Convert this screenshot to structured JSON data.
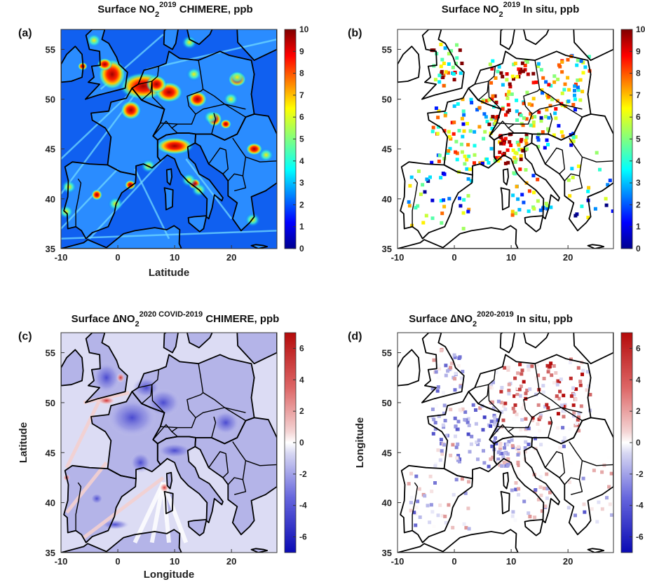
{
  "figure": {
    "panels": [
      {
        "id": "a",
        "letter": "(a)",
        "title": {
          "pre": "Surface NO",
          "sub": "2",
          "sup": "2019",
          "post": " CHIMERE, ppb"
        },
        "kind": "field",
        "palette": "jet",
        "colorbar": {
          "min": 0,
          "max": 10,
          "ticks": [
            "10",
            "9",
            "8",
            "7",
            "6",
            "5",
            "4",
            "3",
            "2",
            "1",
            "0"
          ]
        },
        "xticks": [
          "-10",
          "0",
          "10",
          "20"
        ],
        "yticks": [
          "55",
          "50",
          "45",
          "40",
          "35"
        ],
        "xlabel": "Latitude",
        "ylabel": ""
      },
      {
        "id": "b",
        "letter": "(b)",
        "title": {
          "pre": "Surface NO",
          "sub": "2",
          "sup": "2019",
          "post": " In situ, ppb"
        },
        "kind": "stations",
        "palette": "jet",
        "colorbar": {
          "min": 0,
          "max": 10,
          "ticks": [
            "10",
            "9",
            "8",
            "7",
            "6",
            "5",
            "4",
            "3",
            "2",
            "1",
            "0"
          ]
        },
        "xticks": [
          "-10",
          "0",
          "10",
          "20"
        ],
        "yticks": [
          "55",
          "50",
          "45",
          "40",
          "35"
        ],
        "xlabel": "",
        "ylabel": ""
      },
      {
        "id": "c",
        "letter": "(c)",
        "title": {
          "pre": "Surface ∆NO",
          "sub": "2",
          "sup": "2020 COVID-2019",
          "post": " CHIMERE, ppb"
        },
        "kind": "field",
        "palette": "diverging",
        "colorbar": {
          "min": -7,
          "max": 7,
          "ticks": [
            "6",
            "4",
            "2",
            "0",
            "-2",
            "-4",
            "-6"
          ]
        },
        "xticks": [
          "-10",
          "0",
          "10",
          "20"
        ],
        "yticks": [
          "55",
          "50",
          "45",
          "40",
          "35"
        ],
        "xlabel": "Longitude",
        "ylabel": "Latitude"
      },
      {
        "id": "d",
        "letter": "(d)",
        "title": {
          "pre": "Surface ∆NO",
          "sub": "2",
          "sup": "2020-2019",
          "post": " In situ, ppb"
        },
        "kind": "stations",
        "palette": "diverging",
        "colorbar": {
          "min": -7,
          "max": 7,
          "ticks": [
            "6",
            "4",
            "2",
            "0",
            "-2",
            "-4",
            "-6"
          ]
        },
        "xticks": [
          "-10",
          "0",
          "10",
          "20"
        ],
        "yticks": [
          "55",
          "50",
          "45",
          "40",
          "35"
        ],
        "xlabel": "",
        "ylabel": "Longitude"
      }
    ],
    "map_extent": {
      "lon": [
        -10,
        28
      ],
      "lat": [
        35,
        57
      ]
    }
  }
}
